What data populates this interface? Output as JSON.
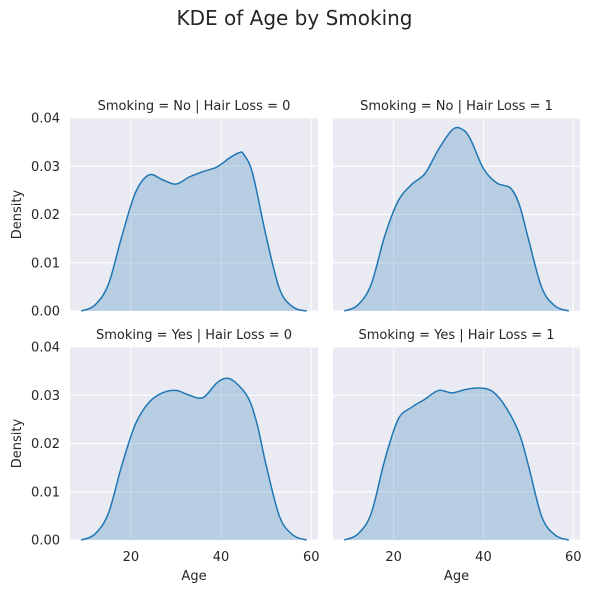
{
  "chart_data": {
    "type": "area",
    "suptitle": "KDE of Age by Smoking",
    "xlabel": "Age",
    "ylabel": "Density",
    "xlim": [
      6.5,
      61.5
    ],
    "ylim": [
      0,
      0.04
    ],
    "xticks": [
      20,
      40,
      60
    ],
    "yticks": [
      0,
      0.01,
      0.02,
      0.03,
      0.04
    ],
    "ytick_labels": [
      "0.00",
      "0.01",
      "0.02",
      "0.03",
      "0.04"
    ],
    "xtick_labels": [
      "20",
      "40",
      "60"
    ],
    "grid": true,
    "line_color": "#1f77b4",
    "fill_color": "#1f77b4",
    "fill_alpha": 0.25,
    "background": "#eaeaf2",
    "panels": [
      {
        "title": "Smoking = No | Hair Loss = 0",
        "x": [
          9,
          12,
          15,
          18,
          21,
          24,
          27,
          30,
          33,
          36,
          39,
          42,
          44,
          45,
          47,
          50,
          53,
          56,
          59
        ],
        "y": [
          0.0,
          0.0012,
          0.0055,
          0.0155,
          0.0245,
          0.0282,
          0.0272,
          0.0263,
          0.0278,
          0.0289,
          0.0298,
          0.0318,
          0.0328,
          0.0325,
          0.0285,
          0.0155,
          0.0045,
          0.0008,
          0.0
        ]
      },
      {
        "title": "Smoking = No | Hair Loss = 1",
        "x": [
          9,
          12,
          15,
          18,
          21,
          24,
          27,
          30,
          33,
          35,
          37,
          40,
          43,
          46,
          48,
          50,
          53,
          56,
          59
        ],
        "y": [
          0.0,
          0.0012,
          0.0055,
          0.0155,
          0.0228,
          0.0262,
          0.0285,
          0.0335,
          0.0375,
          0.0378,
          0.0358,
          0.0295,
          0.0265,
          0.0255,
          0.022,
          0.015,
          0.0048,
          0.001,
          0.0
        ]
      },
      {
        "title": "Smoking = Yes | Hair Loss = 0",
        "x": [
          9,
          12,
          15,
          18,
          21,
          24,
          27,
          30,
          33,
          36,
          39,
          41,
          43,
          46,
          48,
          50,
          53,
          56,
          59
        ],
        "y": [
          0.0,
          0.0012,
          0.0055,
          0.0155,
          0.024,
          0.0285,
          0.0305,
          0.031,
          0.03,
          0.0295,
          0.0325,
          0.0335,
          0.0328,
          0.0295,
          0.024,
          0.0155,
          0.0048,
          0.001,
          0.0
        ]
      },
      {
        "title": "Smoking = Yes | Hair Loss = 1",
        "x": [
          9,
          12,
          15,
          18,
          21,
          24,
          27,
          30,
          33,
          36,
          39,
          42,
          45,
          48,
          50,
          53,
          56,
          59
        ],
        "y": [
          0.0,
          0.0012,
          0.0055,
          0.0165,
          0.025,
          0.0275,
          0.0292,
          0.031,
          0.0305,
          0.0312,
          0.0315,
          0.0308,
          0.0275,
          0.022,
          0.0155,
          0.0048,
          0.001,
          0.0
        ]
      }
    ]
  }
}
